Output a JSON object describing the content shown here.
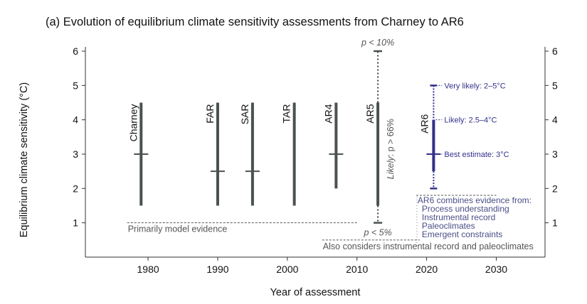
{
  "chart_data": {
    "type": "range",
    "title": "(a) Evolution of equilibrium climate sensitivity assessments from Charney to AR6",
    "xlabel": "Year of assessment",
    "ylabel": "Equilibrium climate sensitivity (°C)",
    "xlim": [
      1971,
      2037
    ],
    "ylim": [
      0,
      6
    ],
    "xticks": [
      "1980",
      "1990",
      "2000",
      "2010",
      "2020",
      "2030"
    ],
    "yticks": [
      "1",
      "2",
      "3",
      "4",
      "5",
      "6"
    ],
    "grid": false,
    "colors": {
      "past": "#4a524e",
      "ar6": "#33308a",
      "evidence_text": "#4a4e86",
      "dashes": "#555555"
    },
    "assessments": [
      {
        "name": "Charney",
        "year": 1979,
        "low": 1.5,
        "high": 4.5,
        "best": 3.0
      },
      {
        "name": "FAR",
        "year": 1990,
        "low": 1.5,
        "high": 4.5,
        "best": 2.5
      },
      {
        "name": "SAR",
        "year": 1995,
        "low": 1.5,
        "high": 4.5,
        "best": 2.5
      },
      {
        "name": "TAR",
        "year": 2001,
        "low": 1.5,
        "high": 4.5,
        "best": null
      },
      {
        "name": "AR4",
        "year": 2007,
        "low": 2.0,
        "high": 4.5,
        "best": 3.0
      },
      {
        "name": "AR5",
        "year": 2013,
        "low": 1.5,
        "high": 4.5,
        "best": null,
        "extended_low": 1.0,
        "extended_high": 6.0
      }
    ],
    "ar5_annotations": {
      "likely": "Likely",
      "likely_rest": ": p > 66%",
      "upper": "p < 10%",
      "lower": "p < 5%"
    },
    "ar6": {
      "name": "AR6",
      "year": 2021,
      "best": 3.0,
      "likely": [
        2.5,
        4.0
      ],
      "very_likely": [
        2.0,
        5.0
      ],
      "very_likely_label": "Very likely:  2–5°C",
      "likely_label": "Likely:  2.5–4°C",
      "best_label": "Best estimate:  3°C"
    },
    "evidence_periods": [
      {
        "label": "Primarily model evidence",
        "x_start": 1977,
        "x_end": 2010,
        "y": 1.0
      },
      {
        "label": "Also considers instrumental record and paleoclimates",
        "x_start": 2005,
        "x_end": 2019,
        "y": 0.5
      }
    ],
    "ar6_evidence": {
      "title": "AR6 combines evidence from:",
      "items": [
        "Process understanding",
        "Instrumental record",
        "Paleoclimates",
        "Emergent constraints"
      ],
      "x_start": 2018.5,
      "x_end": 2030,
      "y": 1.8
    }
  }
}
